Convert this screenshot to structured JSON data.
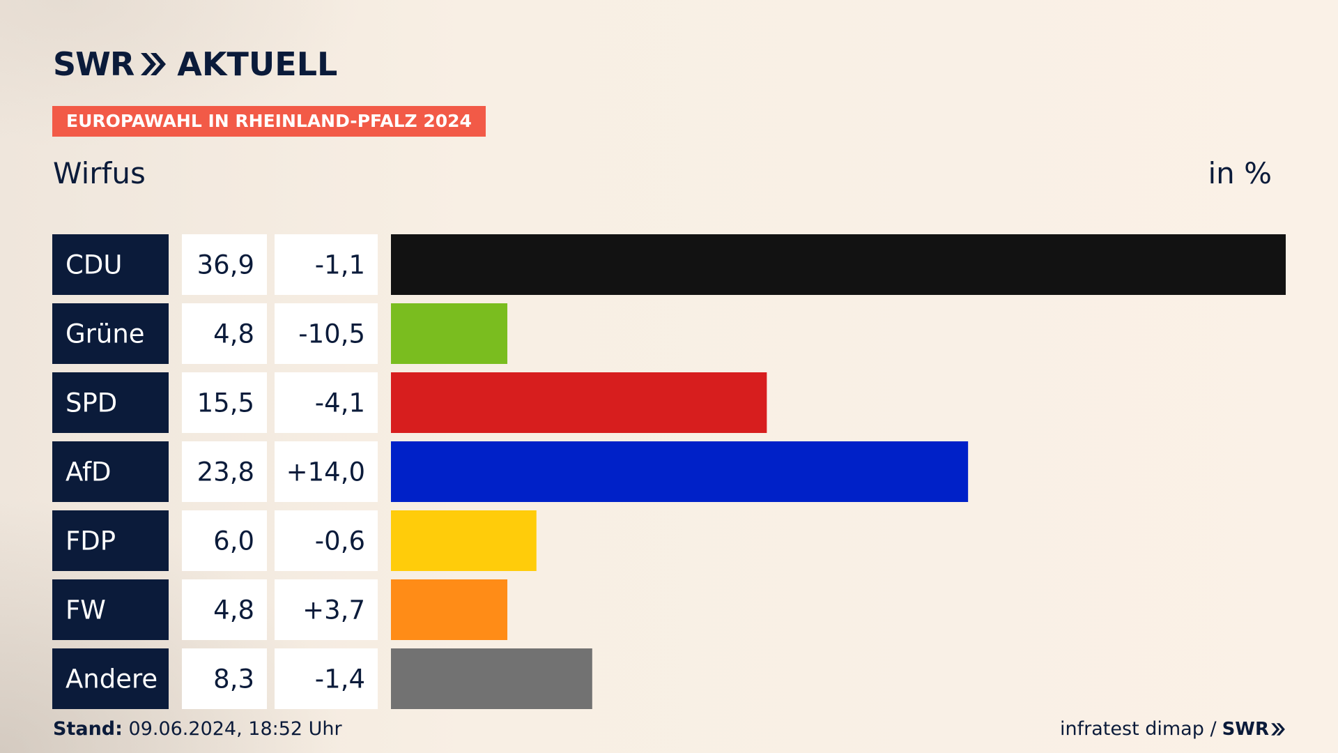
{
  "brand": {
    "logo_swr": "SWR",
    "logo_aktuell": "AKTUELL"
  },
  "header": {
    "tag": "EUROPAWAHL IN RHEINLAND-PFALZ 2024",
    "title": "Wirfus",
    "unit": "in %"
  },
  "colors": {
    "navy": "#0b1b3a",
    "tag": "#f25a47",
    "CDU": "#121212",
    "Grüne": "#7abd1f",
    "SPD": "#d71e1e",
    "AfD": "#0021c8",
    "FDP": "#ffcc0a",
    "FW": "#ff8c17",
    "Andere": "#727272"
  },
  "chart_data": {
    "type": "bar",
    "orientation": "horizontal",
    "categories": [
      "CDU",
      "Grüne",
      "SPD",
      "AfD",
      "FDP",
      "FW",
      "Andere"
    ],
    "values": [
      36.9,
      4.8,
      15.5,
      23.8,
      6.0,
      4.8,
      8.3
    ],
    "value_labels": [
      "36,9",
      "4,8",
      "15,5",
      "23,8",
      "6,0",
      "4,8",
      "8,3"
    ],
    "changes": [
      -1.1,
      -10.5,
      -4.1,
      14.0,
      -0.6,
      3.7,
      -1.4
    ],
    "change_labels": [
      "-1,1",
      "-10,5",
      "-4,1",
      "+14,0",
      "-0,6",
      "+3,7",
      "-1,4"
    ],
    "xlim": [
      0,
      36.9
    ],
    "grid": false,
    "legend": "none"
  },
  "footer": {
    "stand_label": "Stand:",
    "stand_value": "09.06.2024, 18:52 Uhr",
    "source": "infratest dimap /",
    "source_brand": "SWR"
  }
}
